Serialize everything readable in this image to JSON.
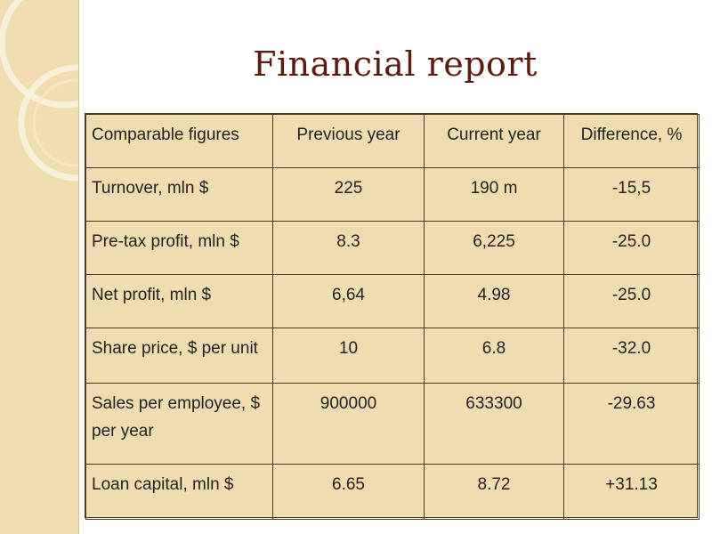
{
  "slide": {
    "title": "Financial report"
  },
  "table": {
    "headers": [
      "Comparable figures",
      "Previous year",
      "Current year",
      "Difference, %"
    ],
    "rows": [
      [
        "Turnover, mln $",
        "225",
        "190 m",
        "-15,5"
      ],
      [
        "Pre-tax profit, mln $",
        "8.3",
        "6,225",
        "-25.0"
      ],
      [
        "Net profit, mln $",
        "6,64",
        "4.98",
        "-25.0"
      ],
      [
        "Share price, $ per unit",
        "10",
        "6.8",
        "-32.0"
      ],
      [
        "Sales per employee, $ per year",
        "900000",
        "633300",
        "-29.63"
      ],
      [
        "Loan capital, mln $",
        "6.65",
        "8.72",
        "+31.13"
      ]
    ]
  },
  "colors": {
    "title": "#5b1a12",
    "table_fill": "#efdcb0",
    "side_band": "#efdcb0",
    "border": "#4a3a22"
  }
}
